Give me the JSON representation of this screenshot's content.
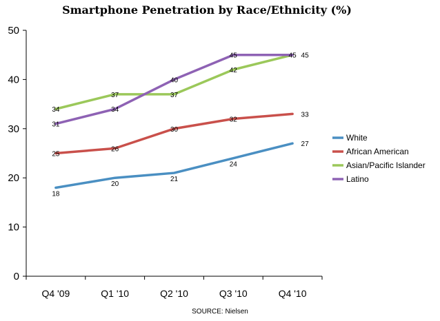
{
  "chart_data": {
    "type": "line",
    "title": "Smartphone Penetration by Race/Ethnicity (%)",
    "xlabel": "",
    "ylabel": "",
    "categories": [
      "Q4 '09",
      "Q1 '10",
      "Q2 '10",
      "Q3 '10",
      "Q4 '10"
    ],
    "ylim": [
      0,
      50
    ],
    "yticks": [
      0,
      10,
      20,
      30,
      40,
      50
    ],
    "grid": false,
    "legend_position": "right",
    "source": "SOURCE: Nielsen",
    "series": [
      {
        "name": "White",
        "color": "#4a8fc2",
        "values": [
          18,
          20,
          21,
          24,
          27
        ]
      },
      {
        "name": "African American",
        "color": "#c9504b",
        "values": [
          25,
          26,
          30,
          32,
          33
        ]
      },
      {
        "name": "Asian/Pacific Islander",
        "color": "#9bc85a",
        "values": [
          34,
          37,
          37,
          42,
          45
        ]
      },
      {
        "name": "Latino",
        "color": "#8e62b4",
        "values": [
          31,
          34,
          40,
          45,
          45
        ]
      }
    ]
  }
}
